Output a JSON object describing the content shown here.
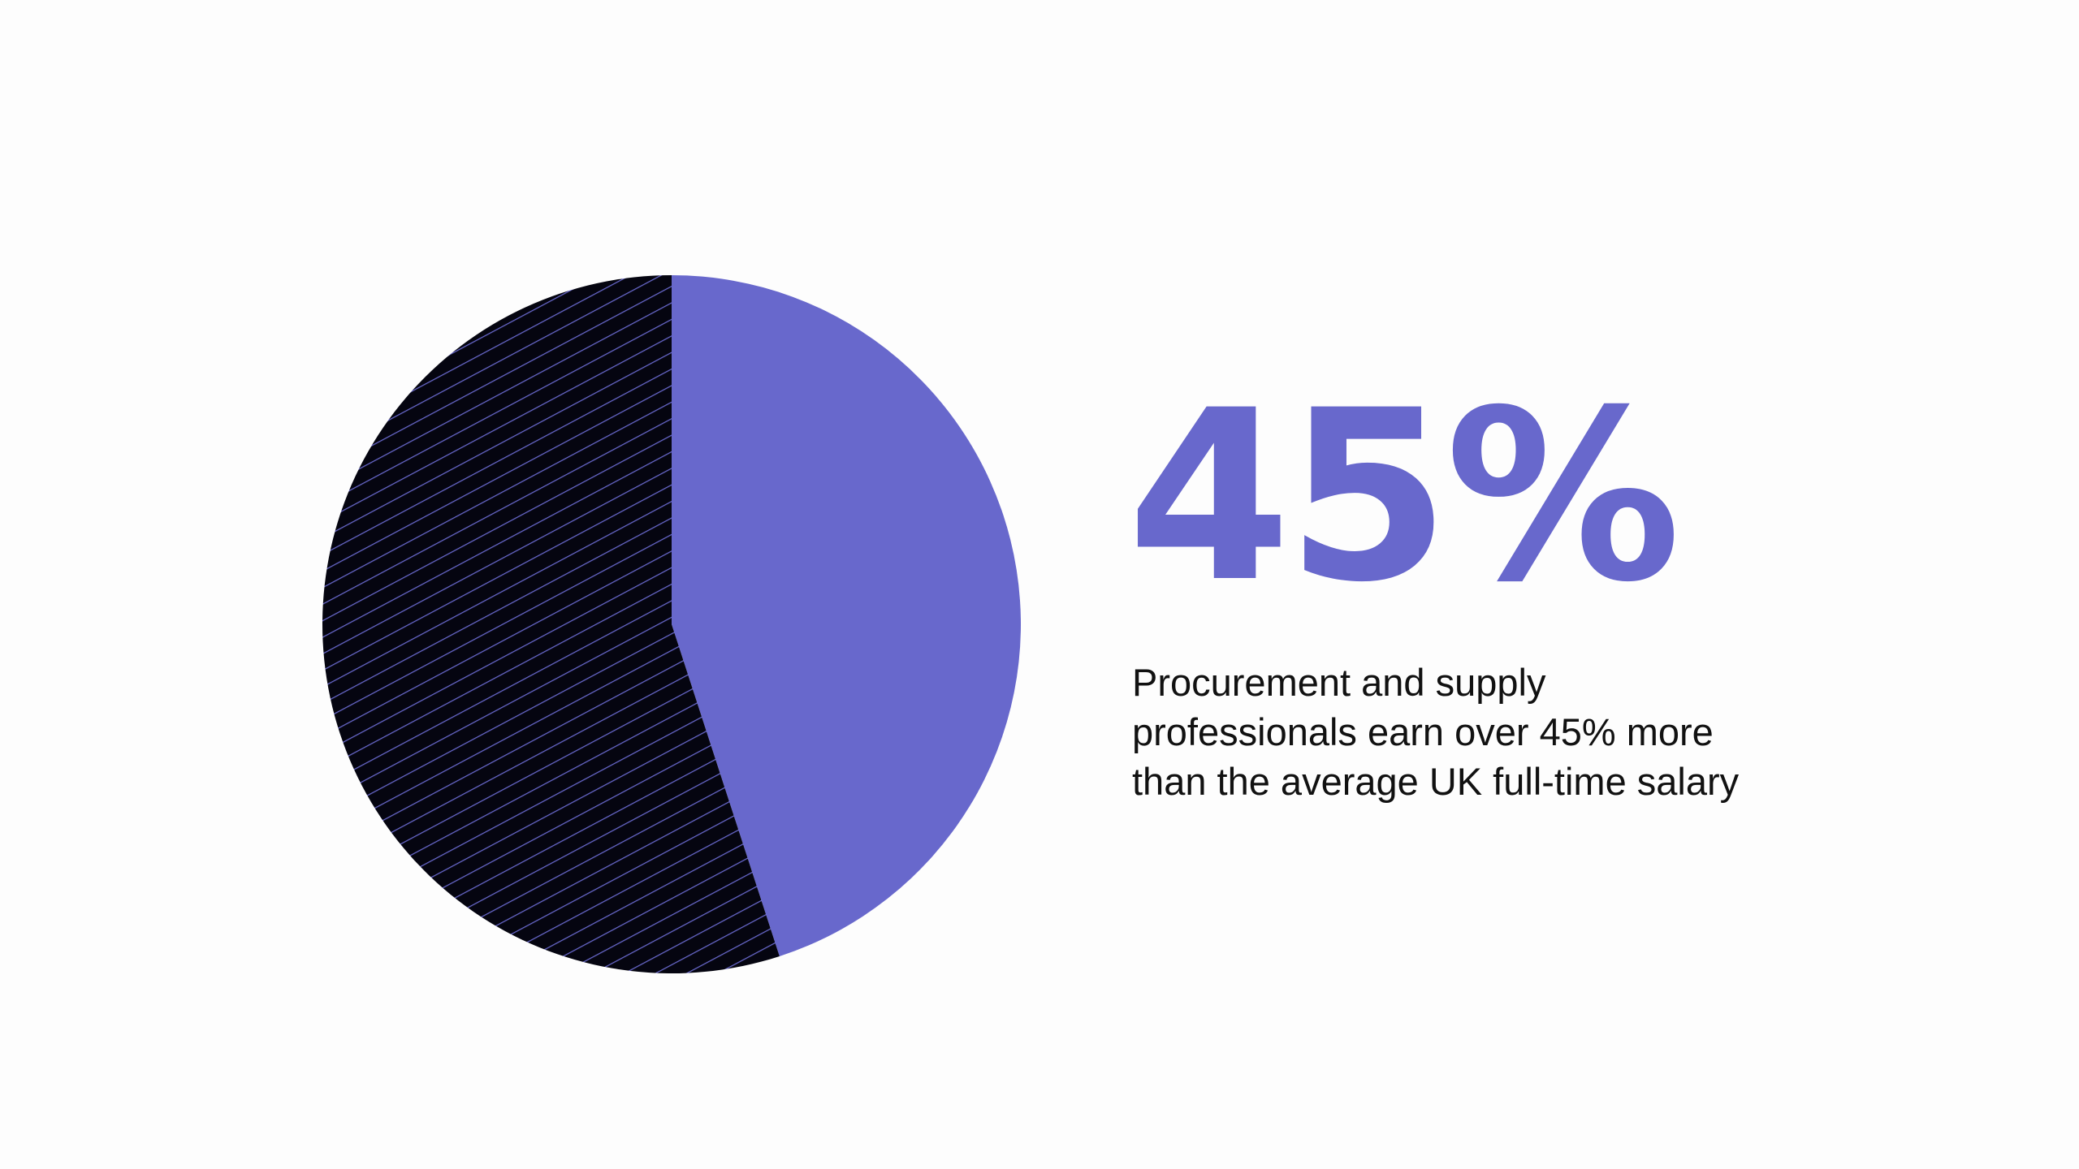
{
  "chart_data": {
    "type": "pie",
    "values": [
      45,
      55
    ],
    "colors": [
      "#6868cc",
      "#050510"
    ],
    "pattern": [
      "solid",
      "diagonal-hatch"
    ],
    "hatch_color": "#6868cc",
    "start_angle_deg": 0,
    "direction": "clockwise",
    "legend": "none"
  },
  "stat": {
    "value": "45%",
    "color": "#6868cc",
    "caption_lines": [
      "Procurement and supply",
      "professionals earn over 45% more",
      "than the average UK full-time salary"
    ]
  }
}
